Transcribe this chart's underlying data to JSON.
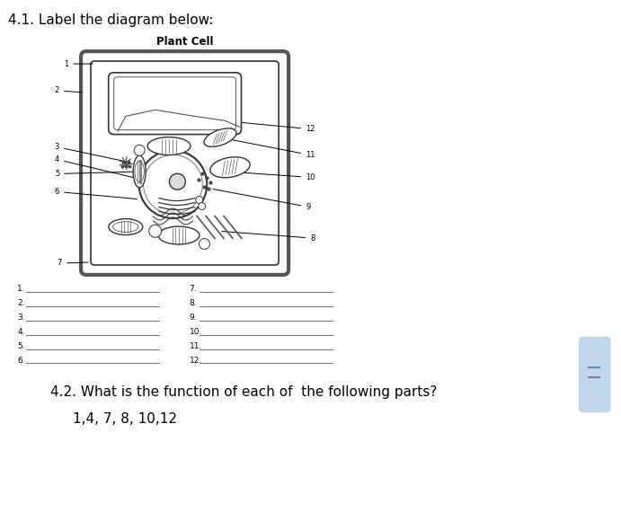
{
  "title_41": "4.1. Label the diagram below:",
  "diagram_title": "Plant Cell",
  "answer_lines_left": [
    "1",
    "2",
    "3",
    "4",
    "5",
    "6"
  ],
  "answer_lines_right": [
    "7",
    "8",
    "9",
    "10",
    "11",
    "12"
  ],
  "question_42": "4.2. What is the function of each of  the following parts?",
  "question_42b": "1,4, 7, 8, 10,12",
  "bg_color": "#ffffff",
  "text_color": "#000000",
  "title_fontsize": 11,
  "diagram_title_fontsize": 8.5,
  "answer_fontsize": 6.5,
  "question_fontsize": 11,
  "label_fontsize": 6
}
